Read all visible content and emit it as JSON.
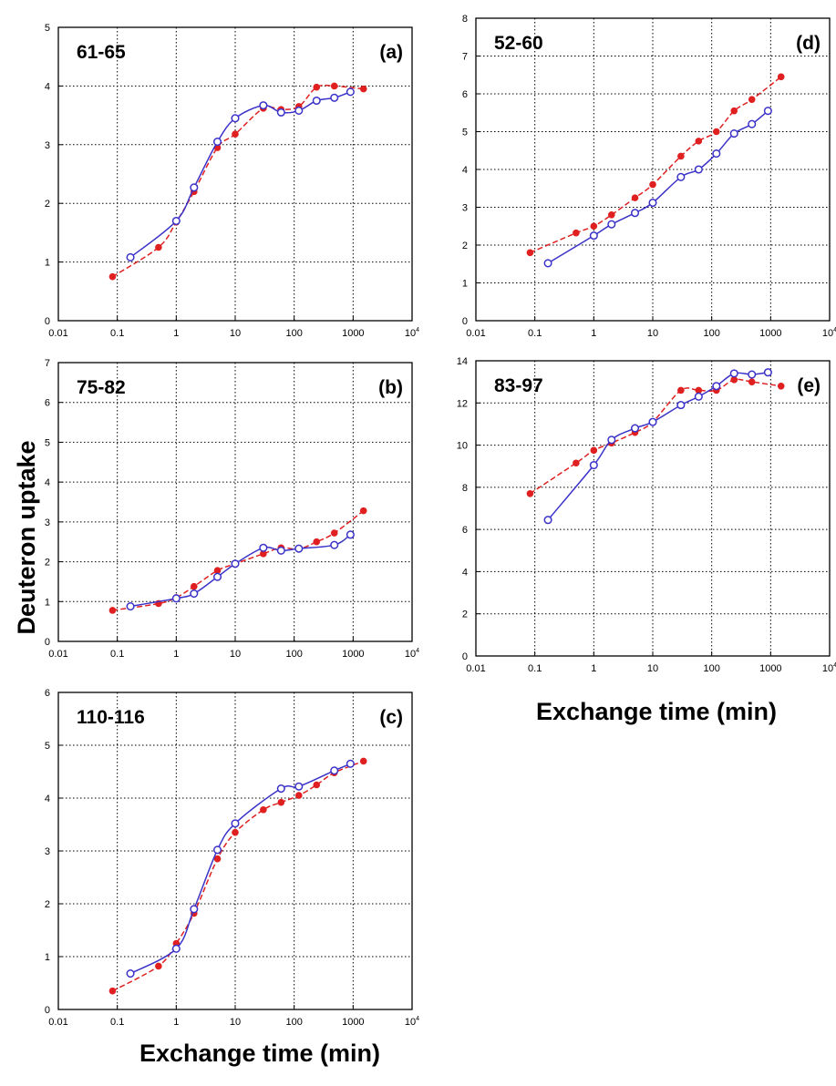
{
  "figure": {
    "ylabel": "Deuteron uptake",
    "xlabel_bottom": "Exchange time (min)",
    "xlabel_right": "Exchange time (min)",
    "colors": {
      "red": "#e02020",
      "blue": "#3a32c8"
    }
  },
  "chart_data": [
    {
      "id": "a",
      "type": "scatter",
      "peptide": "61-65",
      "panel_label": "(a)",
      "xscale": "log",
      "xlim": [
        0.01,
        10000
      ],
      "ylim": [
        0,
        5
      ],
      "xticks": [
        "0.01",
        "0.1",
        "1",
        "10",
        "100",
        "1000",
        "10"
      ],
      "xtick_last_sup": "4",
      "yticks": [
        "0",
        "1",
        "2",
        "3",
        "4",
        "5"
      ],
      "series": [
        {
          "color": "#e02020",
          "marker": "filled-circle",
          "line": "dashed",
          "x": [
            0.083,
            0.5,
            1,
            2,
            5,
            10,
            30,
            60,
            120,
            240,
            480,
            1500
          ],
          "y": [
            0.75,
            1.25,
            1.68,
            2.2,
            2.95,
            3.18,
            3.62,
            3.6,
            3.65,
            3.98,
            4.0,
            3.95
          ]
        },
        {
          "color": "#3a32c8",
          "marker": "open-circle",
          "line": "solid",
          "x": [
            0.167,
            1,
            2,
            5,
            10,
            30,
            60,
            120,
            240,
            480,
            900
          ],
          "y": [
            1.08,
            1.7,
            2.27,
            3.05,
            3.45,
            3.67,
            3.55,
            3.58,
            3.75,
            3.8,
            3.9
          ]
        }
      ]
    },
    {
      "id": "b",
      "type": "scatter",
      "peptide": "75-82",
      "panel_label": "(b)",
      "xscale": "log",
      "xlim": [
        0.01,
        10000
      ],
      "ylim": [
        0,
        7
      ],
      "xticks": [
        "0.01",
        "0.1",
        "1",
        "10",
        "100",
        "1000",
        "10"
      ],
      "xtick_last_sup": "4",
      "yticks": [
        "0",
        "1",
        "2",
        "3",
        "4",
        "5",
        "6",
        "7"
      ],
      "series": [
        {
          "color": "#e02020",
          "marker": "filled-circle",
          "line": "dashed",
          "x": [
            0.083,
            0.5,
            1,
            2,
            5,
            10,
            30,
            60,
            120,
            240,
            480,
            1500
          ],
          "y": [
            0.78,
            0.95,
            1.1,
            1.38,
            1.78,
            1.95,
            2.2,
            2.35,
            2.32,
            2.5,
            2.72,
            3.28
          ]
        },
        {
          "color": "#3a32c8",
          "marker": "open-circle",
          "line": "solid",
          "x": [
            0.167,
            1,
            2,
            5,
            10,
            30,
            60,
            120,
            480,
            900
          ],
          "y": [
            0.88,
            1.08,
            1.2,
            1.62,
            1.95,
            2.35,
            2.28,
            2.33,
            2.42,
            2.68
          ]
        }
      ]
    },
    {
      "id": "c",
      "type": "scatter",
      "peptide": "110-116",
      "panel_label": "(c)",
      "xscale": "log",
      "xlim": [
        0.01,
        10000
      ],
      "ylim": [
        0,
        6
      ],
      "xticks": [
        "0.01",
        "0.1",
        "1",
        "10",
        "100",
        "1000",
        "10"
      ],
      "xtick_last_sup": "4",
      "yticks": [
        "0",
        "1",
        "2",
        "3",
        "4",
        "5",
        "6"
      ],
      "series": [
        {
          "color": "#e02020",
          "marker": "filled-circle",
          "line": "dashed",
          "x": [
            0.083,
            0.5,
            1,
            2,
            5,
            10,
            30,
            60,
            120,
            240,
            480,
            1500
          ],
          "y": [
            0.35,
            0.82,
            1.25,
            1.82,
            2.85,
            3.35,
            3.78,
            3.92,
            4.05,
            4.25,
            4.48,
            4.7
          ]
        },
        {
          "color": "#3a32c8",
          "marker": "open-circle",
          "line": "solid",
          "x": [
            0.167,
            1,
            2,
            5,
            10,
            60,
            120,
            480,
            900
          ],
          "y": [
            0.68,
            1.15,
            1.9,
            3.02,
            3.52,
            4.18,
            4.22,
            4.52,
            4.65
          ]
        }
      ]
    },
    {
      "id": "d",
      "type": "scatter",
      "peptide": "52-60",
      "panel_label": "(d)",
      "xscale": "log",
      "xlim": [
        0.01,
        10000
      ],
      "ylim": [
        0,
        8
      ],
      "xticks": [
        "0.01",
        "0.1",
        "1",
        "10",
        "100",
        "1000",
        "10"
      ],
      "xtick_last_sup": "4",
      "yticks": [
        "0",
        "1",
        "2",
        "3",
        "4",
        "5",
        "6",
        "7",
        "8"
      ],
      "series": [
        {
          "color": "#e02020",
          "marker": "filled-circle",
          "line": "dashed",
          "x": [
            0.083,
            0.5,
            1,
            2,
            5,
            10,
            30,
            60,
            120,
            240,
            480,
            1500
          ],
          "y": [
            1.8,
            2.32,
            2.5,
            2.8,
            3.25,
            3.6,
            4.35,
            4.75,
            5.0,
            5.55,
            5.85,
            6.45
          ]
        },
        {
          "color": "#3a32c8",
          "marker": "open-circle",
          "line": "solid",
          "x": [
            0.167,
            1,
            2,
            5,
            10,
            30,
            60,
            120,
            240,
            480,
            900
          ],
          "y": [
            1.52,
            2.25,
            2.55,
            2.85,
            3.12,
            3.8,
            4.0,
            4.42,
            4.95,
            5.2,
            5.55
          ]
        }
      ]
    },
    {
      "id": "e",
      "type": "scatter",
      "peptide": "83-97",
      "panel_label": "(e)",
      "xscale": "log",
      "xlim": [
        0.01,
        10000
      ],
      "ylim": [
        0,
        14
      ],
      "xticks": [
        "0.01",
        "0.1",
        "1",
        "10",
        "100",
        "1000",
        "10"
      ],
      "xtick_last_sup": "4",
      "yticks": [
        "0",
        "2",
        "4",
        "6",
        "8",
        "10",
        "12",
        "14"
      ],
      "series": [
        {
          "color": "#e02020",
          "marker": "filled-circle",
          "line": "dashed",
          "x": [
            0.083,
            0.5,
            1,
            2,
            5,
            10,
            30,
            60,
            120,
            240,
            480,
            1500
          ],
          "y": [
            7.7,
            9.15,
            9.75,
            10.1,
            10.6,
            11.1,
            12.6,
            12.6,
            12.6,
            13.1,
            13.0,
            12.8
          ]
        },
        {
          "color": "#3a32c8",
          "marker": "open-circle",
          "line": "solid",
          "x": [
            0.167,
            1,
            2,
            5,
            10,
            30,
            60,
            120,
            240,
            480,
            900
          ],
          "y": [
            6.45,
            9.05,
            10.25,
            10.8,
            11.1,
            11.9,
            12.3,
            12.8,
            13.4,
            13.35,
            13.45
          ]
        }
      ]
    }
  ]
}
